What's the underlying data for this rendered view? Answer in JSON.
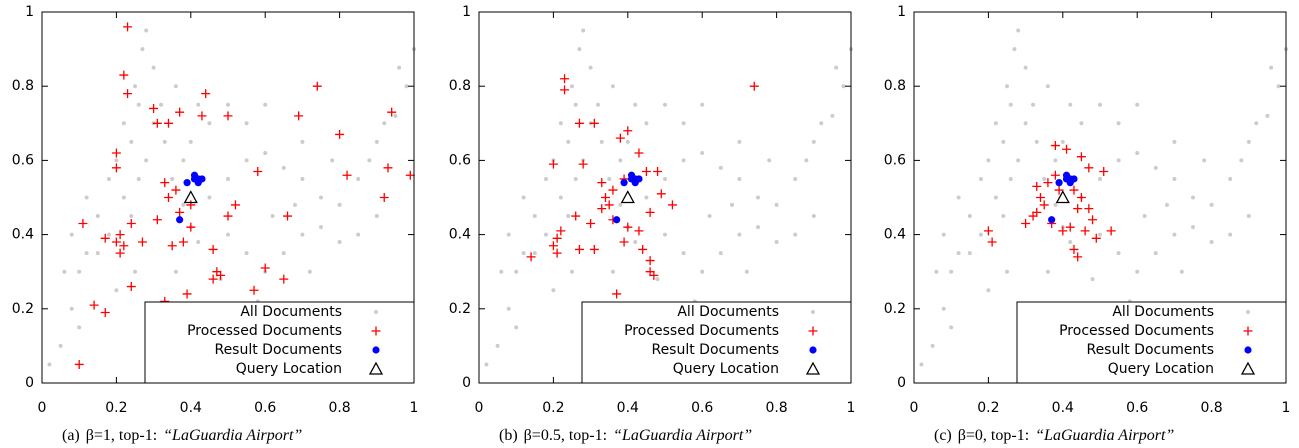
{
  "charts": [
    {
      "type": "scatter",
      "caption": {
        "label": "(a)",
        "text": "β=1, top-1:",
        "query": "“LaGuardia Airport”"
      },
      "xlim": [
        0,
        1
      ],
      "ylim": [
        0,
        1
      ],
      "xticks": [
        0,
        0.2,
        0.4,
        0.6,
        0.8,
        1
      ],
      "yticks": [
        0,
        0.2,
        0.4,
        0.6,
        0.8,
        1
      ],
      "legend": "lower right",
      "series": [
        {
          "name": "All Documents",
          "color": "#cccccc",
          "marker": "dot",
          "x": [
            0.05,
            0.08,
            0.1,
            0.12,
            0.15,
            0.18,
            0.2,
            0.22,
            0.25,
            0.27,
            0.28,
            0.3,
            0.32,
            0.33,
            0.35,
            0.38,
            0.4,
            0.42,
            0.36,
            0.34,
            0.32,
            0.3,
            0.45,
            0.5,
            0.55,
            0.6,
            0.65,
            0.7,
            0.75,
            0.8,
            0.85,
            0.9,
            0.95,
            0.98,
            0.5,
            0.55,
            0.6,
            0.65,
            0.7,
            0.75,
            0.8,
            0.85,
            0.9,
            0.45,
            0.5,
            0.02,
            0.1,
            0.25,
            0.2,
            0.15,
            0.18,
            0.22,
            0.24,
            0.26,
            0.28,
            0.3,
            0.26,
            0.24,
            0.38,
            0.4,
            0.36,
            0.42,
            0.55,
            0.6,
            0.7,
            0.78,
            0.88,
            0.92,
            0.96,
            1.0,
            0.62,
            0.68,
            0.72,
            0.58,
            0.48,
            0.44,
            0.4,
            0.12,
            0.08,
            0.06
          ],
          "y": [
            0.1,
            0.2,
            0.3,
            0.35,
            0.45,
            0.55,
            0.6,
            0.7,
            0.8,
            0.9,
            0.95,
            0.85,
            0.75,
            0.65,
            0.55,
            0.48,
            0.42,
            0.38,
            0.3,
            0.2,
            0.1,
            0.05,
            0.5,
            0.55,
            0.6,
            0.62,
            0.58,
            0.55,
            0.5,
            0.48,
            0.55,
            0.65,
            0.72,
            0.8,
            0.4,
            0.35,
            0.3,
            0.35,
            0.4,
            0.42,
            0.38,
            0.4,
            0.45,
            0.7,
            0.75,
            0.05,
            0.15,
            0.3,
            0.25,
            0.35,
            0.4,
            0.5,
            0.45,
            0.55,
            0.6,
            0.7,
            0.75,
            0.65,
            0.6,
            0.65,
            0.8,
            0.75,
            0.7,
            0.75,
            0.65,
            0.6,
            0.6,
            0.7,
            0.85,
            0.9,
            0.45,
            0.48,
            0.3,
            0.22,
            0.28,
            0.2,
            0.12,
            0.5,
            0.4,
            0.3
          ]
        },
        {
          "name": "Processed Documents",
          "color": "#ff0000",
          "marker": "plus",
          "x": [
            0.23,
            0.22,
            0.23,
            0.3,
            0.31,
            0.34,
            0.37,
            0.44,
            0.43,
            0.5,
            0.74,
            0.69,
            0.8,
            0.58,
            0.82,
            0.94,
            0.93,
            0.99,
            0.2,
            0.2,
            0.33,
            0.36,
            0.34,
            0.37,
            0.4,
            0.21,
            0.2,
            0.22,
            0.21,
            0.11,
            0.17,
            0.24,
            0.27,
            0.31,
            0.35,
            0.38,
            0.4,
            0.46,
            0.47,
            0.46,
            0.48,
            0.52,
            0.5,
            0.57,
            0.6,
            0.66,
            0.65,
            0.92,
            0.14,
            0.17,
            0.24,
            0.39,
            0.33,
            0.1
          ],
          "y": [
            0.96,
            0.83,
            0.78,
            0.74,
            0.7,
            0.7,
            0.73,
            0.78,
            0.72,
            0.72,
            0.8,
            0.72,
            0.67,
            0.57,
            0.56,
            0.73,
            0.58,
            0.56,
            0.62,
            0.58,
            0.54,
            0.52,
            0.5,
            0.46,
            0.48,
            0.4,
            0.38,
            0.37,
            0.35,
            0.43,
            0.39,
            0.43,
            0.38,
            0.44,
            0.37,
            0.38,
            0.42,
            0.36,
            0.3,
            0.28,
            0.29,
            0.48,
            0.45,
            0.25,
            0.31,
            0.45,
            0.28,
            0.5,
            0.21,
            0.19,
            0.26,
            0.24,
            0.22,
            0.05
          ]
        },
        {
          "name": "Result Documents",
          "color": "#0000ff",
          "marker": "circle",
          "x": [
            0.39,
            0.41,
            0.42,
            0.42,
            0.43,
            0.41,
            0.37
          ],
          "y": [
            0.54,
            0.55,
            0.55,
            0.54,
            0.55,
            0.56,
            0.44
          ]
        },
        {
          "name": "Query Location",
          "color": "#000000",
          "marker": "triangle",
          "x": [
            0.4
          ],
          "y": [
            0.5
          ]
        }
      ]
    },
    {
      "type": "scatter",
      "caption": {
        "label": "(b)",
        "text": "β=0.5, top-1:",
        "query": "“LaGuardia Airport”"
      },
      "xlim": [
        0,
        1
      ],
      "ylim": [
        0,
        1
      ],
      "xticks": [
        0,
        0.2,
        0.4,
        0.6,
        0.8,
        1
      ],
      "yticks": [
        0,
        0.2,
        0.4,
        0.6,
        0.8,
        1
      ],
      "legend": "lower right",
      "series": [
        {
          "name": "All Documents",
          "color": "#cccccc",
          "marker": "dot",
          "x": [
            0.05,
            0.08,
            0.1,
            0.12,
            0.15,
            0.18,
            0.2,
            0.22,
            0.25,
            0.27,
            0.28,
            0.3,
            0.32,
            0.33,
            0.35,
            0.38,
            0.4,
            0.42,
            0.36,
            0.34,
            0.32,
            0.3,
            0.45,
            0.5,
            0.55,
            0.6,
            0.65,
            0.7,
            0.75,
            0.8,
            0.85,
            0.9,
            0.95,
            0.98,
            0.5,
            0.55,
            0.6,
            0.65,
            0.7,
            0.75,
            0.8,
            0.85,
            0.9,
            0.45,
            0.5,
            0.02,
            0.1,
            0.25,
            0.2,
            0.15,
            0.18,
            0.22,
            0.24,
            0.26,
            0.28,
            0.3,
            0.26,
            0.24,
            0.38,
            0.4,
            0.36,
            0.42,
            0.55,
            0.6,
            0.7,
            0.78,
            0.88,
            0.92,
            0.96,
            1.0,
            0.62,
            0.68,
            0.72,
            0.58,
            0.48,
            0.44,
            0.4,
            0.12,
            0.08,
            0.06
          ],
          "y": [
            0.1,
            0.2,
            0.3,
            0.35,
            0.45,
            0.55,
            0.6,
            0.7,
            0.8,
            0.9,
            0.95,
            0.85,
            0.75,
            0.65,
            0.55,
            0.48,
            0.42,
            0.38,
            0.3,
            0.2,
            0.1,
            0.05,
            0.5,
            0.55,
            0.6,
            0.62,
            0.58,
            0.55,
            0.5,
            0.48,
            0.55,
            0.65,
            0.72,
            0.8,
            0.4,
            0.35,
            0.3,
            0.35,
            0.4,
            0.42,
            0.38,
            0.4,
            0.45,
            0.7,
            0.75,
            0.05,
            0.15,
            0.3,
            0.25,
            0.35,
            0.4,
            0.5,
            0.45,
            0.55,
            0.6,
            0.7,
            0.75,
            0.65,
            0.6,
            0.65,
            0.8,
            0.75,
            0.7,
            0.75,
            0.65,
            0.6,
            0.6,
            0.7,
            0.85,
            0.9,
            0.45,
            0.48,
            0.3,
            0.22,
            0.28,
            0.2,
            0.12,
            0.5,
            0.4,
            0.3
          ]
        },
        {
          "name": "Processed Documents",
          "color": "#ff0000",
          "marker": "plus",
          "x": [
            0.23,
            0.23,
            0.74,
            0.27,
            0.31,
            0.38,
            0.4,
            0.43,
            0.2,
            0.28,
            0.33,
            0.34,
            0.36,
            0.35,
            0.33,
            0.39,
            0.45,
            0.48,
            0.49,
            0.52,
            0.46,
            0.21,
            0.2,
            0.21,
            0.22,
            0.26,
            0.3,
            0.36,
            0.4,
            0.43,
            0.39,
            0.44,
            0.46,
            0.47,
            0.46,
            0.14,
            0.27,
            0.31,
            0.37
          ],
          "y": [
            0.82,
            0.79,
            0.8,
            0.7,
            0.7,
            0.66,
            0.68,
            0.62,
            0.59,
            0.59,
            0.54,
            0.5,
            0.52,
            0.48,
            0.47,
            0.55,
            0.57,
            0.57,
            0.51,
            0.48,
            0.46,
            0.39,
            0.37,
            0.35,
            0.41,
            0.45,
            0.43,
            0.44,
            0.42,
            0.41,
            0.38,
            0.36,
            0.33,
            0.29,
            0.3,
            0.34,
            0.36,
            0.36,
            0.24
          ]
        },
        {
          "name": "Result Documents",
          "color": "#0000ff",
          "marker": "circle",
          "x": [
            0.39,
            0.41,
            0.42,
            0.42,
            0.43,
            0.41,
            0.37
          ],
          "y": [
            0.54,
            0.55,
            0.55,
            0.54,
            0.55,
            0.56,
            0.44
          ]
        },
        {
          "name": "Query Location",
          "color": "#000000",
          "marker": "triangle",
          "x": [
            0.4
          ],
          "y": [
            0.5
          ]
        }
      ]
    },
    {
      "type": "scatter",
      "caption": {
        "label": "(c)",
        "text": "β=0, top-1:",
        "query": "“LaGuardia Airport”"
      },
      "xlim": [
        0,
        1
      ],
      "ylim": [
        0,
        1
      ],
      "xticks": [
        0,
        0.2,
        0.4,
        0.6,
        0.8,
        1
      ],
      "yticks": [
        0,
        0.2,
        0.4,
        0.6,
        0.8,
        1
      ],
      "legend": "lower right",
      "series": [
        {
          "name": "All Documents",
          "color": "#cccccc",
          "marker": "dot",
          "x": [
            0.05,
            0.08,
            0.1,
            0.12,
            0.15,
            0.18,
            0.2,
            0.22,
            0.25,
            0.27,
            0.28,
            0.3,
            0.32,
            0.33,
            0.35,
            0.38,
            0.4,
            0.42,
            0.36,
            0.34,
            0.32,
            0.3,
            0.45,
            0.5,
            0.55,
            0.6,
            0.65,
            0.7,
            0.75,
            0.8,
            0.85,
            0.9,
            0.95,
            0.98,
            0.5,
            0.55,
            0.6,
            0.65,
            0.7,
            0.75,
            0.8,
            0.85,
            0.9,
            0.45,
            0.5,
            0.02,
            0.1,
            0.25,
            0.2,
            0.15,
            0.18,
            0.22,
            0.24,
            0.26,
            0.28,
            0.3,
            0.26,
            0.24,
            0.38,
            0.4,
            0.36,
            0.42,
            0.55,
            0.6,
            0.7,
            0.78,
            0.88,
            0.92,
            0.96,
            1.0,
            0.62,
            0.68,
            0.72,
            0.58,
            0.48,
            0.44,
            0.4,
            0.12,
            0.08,
            0.06
          ],
          "y": [
            0.1,
            0.2,
            0.3,
            0.35,
            0.45,
            0.55,
            0.6,
            0.7,
            0.8,
            0.9,
            0.95,
            0.85,
            0.75,
            0.65,
            0.55,
            0.48,
            0.42,
            0.38,
            0.3,
            0.2,
            0.1,
            0.05,
            0.5,
            0.55,
            0.6,
            0.62,
            0.58,
            0.55,
            0.5,
            0.48,
            0.55,
            0.65,
            0.72,
            0.8,
            0.4,
            0.35,
            0.3,
            0.35,
            0.4,
            0.42,
            0.38,
            0.4,
            0.45,
            0.7,
            0.75,
            0.05,
            0.15,
            0.3,
            0.25,
            0.35,
            0.4,
            0.5,
            0.45,
            0.55,
            0.6,
            0.7,
            0.75,
            0.65,
            0.6,
            0.65,
            0.8,
            0.75,
            0.7,
            0.75,
            0.65,
            0.6,
            0.6,
            0.7,
            0.85,
            0.9,
            0.45,
            0.48,
            0.3,
            0.22,
            0.28,
            0.2,
            0.12,
            0.5,
            0.4,
            0.3
          ]
        },
        {
          "name": "Processed Documents",
          "color": "#ff0000",
          "marker": "plus",
          "x": [
            0.38,
            0.41,
            0.45,
            0.47,
            0.51,
            0.33,
            0.34,
            0.35,
            0.33,
            0.36,
            0.39,
            0.43,
            0.45,
            0.44,
            0.47,
            0.48,
            0.3,
            0.32,
            0.37,
            0.4,
            0.42,
            0.46,
            0.49,
            0.43,
            0.44,
            0.53,
            0.2,
            0.21,
            0.38
          ],
          "y": [
            0.64,
            0.63,
            0.61,
            0.58,
            0.57,
            0.53,
            0.5,
            0.48,
            0.46,
            0.54,
            0.52,
            0.52,
            0.5,
            0.47,
            0.47,
            0.44,
            0.43,
            0.45,
            0.43,
            0.41,
            0.42,
            0.41,
            0.39,
            0.36,
            0.34,
            0.41,
            0.41,
            0.38,
            0.56
          ]
        },
        {
          "name": "Result Documents",
          "color": "#0000ff",
          "marker": "circle",
          "x": [
            0.39,
            0.41,
            0.42,
            0.42,
            0.43,
            0.41,
            0.37
          ],
          "y": [
            0.54,
            0.55,
            0.55,
            0.54,
            0.55,
            0.56,
            0.44
          ]
        },
        {
          "name": "Query Location",
          "color": "#000000",
          "marker": "triangle",
          "x": [
            0.4
          ],
          "y": [
            0.5
          ]
        }
      ]
    }
  ]
}
